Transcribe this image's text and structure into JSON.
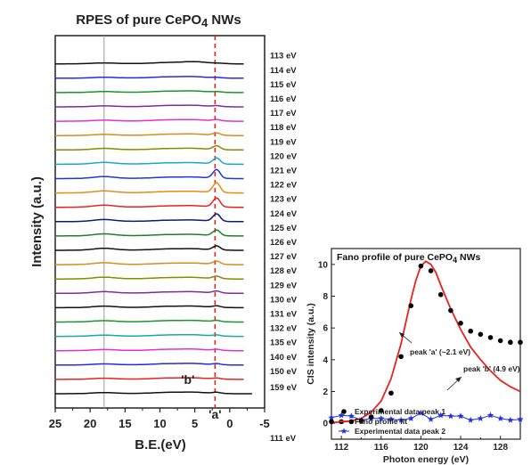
{
  "chart_data": [
    {
      "type": "line",
      "title": "RPES of pure CePO",
      "title_subscript": "4",
      "title_suffix": " NWs",
      "xlabel": "B.E.(eV)",
      "ylabel": "Intensity (a.u.)",
      "xlim": [
        25,
        -5
      ],
      "x_ticks": [
        "25",
        "20",
        "15",
        "10",
        "5",
        "0",
        "-5"
      ],
      "reference_lines": [
        {
          "x": 18.0,
          "style": "solid",
          "color": "#999999"
        },
        {
          "x": 2.1,
          "style": "dashed",
          "color": "#d42a1c"
        }
      ],
      "annotations": [
        {
          "label": "'a'",
          "x": 2.1
        },
        {
          "label": "'b'",
          "x": 4.9
        }
      ],
      "series": [
        {
          "name": "159 eV",
          "color": "#111111",
          "a": 0.15,
          "b": 0.45,
          "g": 0.35
        },
        {
          "name": "150 eV",
          "color": "#e52420",
          "a": 0.15,
          "b": 0.45,
          "g": 0.35
        },
        {
          "name": "140 eV",
          "color": "#2a2ad8",
          "a": 0.15,
          "b": 0.45,
          "g": 0.35
        },
        {
          "name": "135 eV",
          "color": "#e030d8",
          "a": 0.15,
          "b": 0.45,
          "g": 0.35
        },
        {
          "name": "132 eV",
          "color": "#18a8a8",
          "a": 0.15,
          "b": 0.45,
          "g": 0.37
        },
        {
          "name": "131 eV",
          "color": "#19962b",
          "a": 0.18,
          "b": 0.45,
          "g": 0.42
        },
        {
          "name": "130 eV",
          "color": "#111111",
          "a": 0.22,
          "b": 0.45,
          "g": 0.5
        },
        {
          "name": "129 eV",
          "color": "#7b2d9a",
          "a": 0.3,
          "b": 0.45,
          "g": 0.55
        },
        {
          "name": "128 eV",
          "color": "#8a8a00",
          "a": 0.38,
          "b": 0.45,
          "g": 0.6
        },
        {
          "name": "127 eV",
          "color": "#d98c1a",
          "a": 0.5,
          "b": 0.45,
          "g": 0.65
        },
        {
          "name": "126 eV",
          "color": "#111111",
          "a": 0.65,
          "b": 0.45,
          "g": 0.68
        },
        {
          "name": "125 eV",
          "color": "#1f7e2e",
          "a": 0.9,
          "b": 0.45,
          "g": 0.72
        },
        {
          "name": "124 eV",
          "color": "#0c1a7a",
          "a": 1.2,
          "b": 0.45,
          "g": 0.72
        },
        {
          "name": "123 eV",
          "color": "#e52420",
          "a": 1.45,
          "b": 0.45,
          "g": 0.72
        },
        {
          "name": "122 eV",
          "color": "#e88a1a",
          "a": 1.6,
          "b": 0.45,
          "g": 0.7
        },
        {
          "name": "121 eV",
          "color": "#1a3ad8",
          "a": 1.4,
          "b": 0.45,
          "g": 0.68
        },
        {
          "name": "120 eV",
          "color": "#1aa8c8",
          "a": 0.95,
          "b": 0.45,
          "g": 0.62
        },
        {
          "name": "119 eV",
          "color": "#8a8a00",
          "a": 0.6,
          "b": 0.45,
          "g": 0.5
        },
        {
          "name": "118 eV",
          "color": "#d98c1a",
          "a": 0.35,
          "b": 0.45,
          "g": 0.35
        },
        {
          "name": "117 eV",
          "color": "#e030d8",
          "a": 0.2,
          "b": 0.45,
          "g": 0.3
        },
        {
          "name": "116 eV",
          "color": "#7b2d9a",
          "a": 0.12,
          "b": 0.45,
          "g": 0.28
        },
        {
          "name": "115 eV",
          "color": "#19962b",
          "a": 0.08,
          "b": 0.45,
          "g": 0.28
        },
        {
          "name": "114 eV",
          "color": "#2a2ad8",
          "a": 0.05,
          "b": 0.45,
          "g": 0.26
        },
        {
          "name": "113 eV",
          "color": "#111111",
          "a": 0.0,
          "b": 0.7,
          "g": 0.25
        }
      ],
      "extra_label": "111 eV"
    },
    {
      "type": "scatter",
      "title": "Fano profile of pure CePO",
      "title_subscript": "4",
      "title_suffix": " NWs",
      "xlabel": "Photon energy (eV)",
      "ylabel": "CIS intensity (a.u.)",
      "xlim": [
        111,
        130
      ],
      "ylim": [
        -1,
        11
      ],
      "x_ticks": [
        112,
        116,
        120,
        124,
        128
      ],
      "y_ticks": [
        0,
        2,
        4,
        6,
        8,
        10
      ],
      "legend": {
        "placement": "bottom-left",
        "entries": [
          "Experimental data peak 1",
          "Fano profile fit",
          "Experimental data peak 2"
        ]
      },
      "annotations": [
        {
          "text": "peak 'a' (~2.1 eV)"
        },
        {
          "text": "peak 'b' (4.9 eV)"
        }
      ],
      "series": [
        {
          "name": "Experimental data peak 1",
          "marker": "circle",
          "color": "#000000",
          "x": [
            111,
            112,
            113,
            114,
            115,
            116,
            117,
            118,
            119,
            120,
            121,
            122,
            123,
            124,
            125,
            126,
            127,
            128,
            129,
            130
          ],
          "y": [
            0.1,
            0.1,
            0.1,
            0.15,
            0.4,
            0.8,
            1.9,
            4.2,
            7.4,
            9.9,
            9.6,
            8.1,
            7.1,
            6.3,
            5.8,
            5.6,
            5.4,
            5.2,
            5.1,
            5.1
          ]
        },
        {
          "name": "Fano profile fit",
          "marker": "line",
          "color": "#e52420",
          "x": [
            111,
            112,
            113,
            114,
            115,
            116,
            117,
            118,
            118.5,
            119,
            119.5,
            120,
            120.5,
            121,
            121.5,
            122,
            123,
            124,
            125,
            126,
            127,
            128,
            129,
            130
          ],
          "y": [
            0.05,
            0.08,
            0.15,
            0.3,
            0.7,
            1.4,
            2.8,
            5.0,
            6.4,
            7.8,
            9.0,
            9.9,
            10.2,
            10.0,
            9.5,
            8.7,
            7.2,
            5.9,
            4.8,
            4.0,
            3.3,
            2.7,
            2.3,
            2.0
          ]
        },
        {
          "name": "Experimental data peak 2",
          "marker": "star",
          "color": "#2233dd",
          "x": [
            111,
            112,
            113,
            114,
            115,
            116,
            117,
            118,
            119,
            120,
            121,
            122,
            123,
            124,
            125,
            126,
            127,
            128,
            129,
            130
          ],
          "y": [
            0.35,
            0.5,
            0.45,
            0.2,
            0.3,
            0.3,
            0.25,
            0.2,
            0.3,
            0.65,
            0.25,
            0.5,
            0.45,
            0.45,
            0.2,
            0.3,
            0.5,
            0.3,
            0.2,
            0.25
          ]
        }
      ]
    }
  ]
}
